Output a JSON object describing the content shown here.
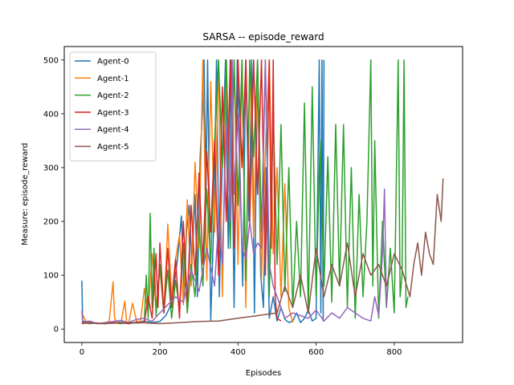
{
  "chart_data": {
    "type": "line",
    "title": "SARSA -- episode_reward",
    "xlabel": "Episodes",
    "ylabel": "Measure: episode_reward",
    "xlim": [
      -45,
      975
    ],
    "ylim": [
      -25,
      525
    ],
    "xticks": [
      0,
      200,
      400,
      600,
      800
    ],
    "yticks": [
      0,
      100,
      200,
      300,
      400,
      500
    ],
    "x_tick_labels": [
      "0",
      "200",
      "400",
      "600",
      "800"
    ],
    "y_tick_labels": [
      "0",
      "100",
      "200",
      "300",
      "400",
      "500"
    ],
    "grid": false,
    "legend_position": "top-left",
    "series": [
      {
        "name": "Agent-0",
        "color": "#1f77b4",
        "x": [
          0,
          2,
          20,
          40,
          60,
          80,
          100,
          120,
          140,
          160,
          180,
          200,
          215,
          225,
          235,
          245,
          255,
          262,
          268,
          275,
          282,
          290,
          296,
          303,
          310,
          313,
          318,
          322,
          330,
          338,
          345,
          352,
          360,
          368,
          375,
          382,
          390,
          398,
          405,
          412,
          420,
          428,
          435,
          442,
          450,
          458,
          465,
          472,
          480,
          490,
          500,
          510,
          520,
          530,
          540,
          550,
          560,
          570,
          580,
          590,
          600,
          608,
          612,
          615,
          618,
          620
        ],
        "y": [
          90,
          15,
          12,
          10,
          12,
          11,
          13,
          10,
          12,
          15,
          12,
          14,
          25,
          40,
          75,
          130,
          210,
          60,
          180,
          230,
          120,
          250,
          60,
          320,
          420,
          500,
          260,
          500,
          15,
          200,
          500,
          60,
          320,
          500,
          150,
          500,
          40,
          500,
          300,
          80,
          500,
          200,
          500,
          30,
          500,
          100,
          40,
          300,
          20,
          60,
          15,
          40,
          18,
          12,
          15,
          30,
          12,
          20,
          35,
          15,
          20,
          500,
          30,
          500,
          15,
          500
        ]
      },
      {
        "name": "Agent-1",
        "color": "#ff7f0e",
        "x": [
          0,
          10,
          30,
          50,
          70,
          80,
          84,
          90,
          100,
          110,
          115,
          120,
          130,
          140,
          150,
          160,
          170,
          180,
          190,
          200,
          210,
          220,
          230,
          240,
          250,
          260,
          270,
          280,
          290,
          300,
          310,
          320,
          330,
          340,
          350,
          360,
          370,
          380,
          390,
          400,
          410,
          420,
          430,
          440,
          450,
          460,
          470,
          480,
          490,
          500,
          510,
          520,
          530,
          540
        ],
        "y": [
          30,
          15,
          12,
          10,
          14,
          88,
          20,
          12,
          10,
          52,
          12,
          10,
          48,
          15,
          12,
          75,
          30,
          140,
          40,
          110,
          30,
          195,
          60,
          130,
          175,
          45,
          240,
          80,
          310,
          150,
          500,
          90,
          460,
          180,
          500,
          60,
          500,
          220,
          500,
          120,
          500,
          40,
          500,
          170,
          500,
          90,
          330,
          500,
          140,
          300,
          60,
          270,
          40,
          12
        ]
      },
      {
        "name": "Agent-2",
        "color": "#2ca02c",
        "x": [
          0,
          20,
          40,
          60,
          80,
          100,
          120,
          140,
          160,
          165,
          170,
          175,
          180,
          185,
          190,
          200,
          210,
          220,
          230,
          240,
          250,
          260,
          270,
          280,
          290,
          300,
          310,
          320,
          330,
          340,
          350,
          360,
          370,
          380,
          390,
          400,
          410,
          420,
          430,
          440,
          450,
          460,
          470,
          480,
          490,
          500,
          510,
          520,
          530,
          540,
          550,
          560,
          570,
          580,
          590,
          600,
          610,
          620,
          630,
          640,
          650,
          660,
          670,
          680,
          690,
          700,
          710,
          720,
          730,
          740,
          745,
          750,
          760,
          770,
          780,
          790,
          800,
          810,
          815,
          820,
          825,
          830,
          835
        ],
        "y": [
          12,
          10,
          11,
          10,
          12,
          10,
          13,
          11,
          12,
          100,
          20,
          215,
          40,
          150,
          25,
          120,
          30,
          110,
          20,
          90,
          40,
          160,
          30,
          120,
          60,
          200,
          80,
          260,
          120,
          350,
          500,
          300,
          500,
          150,
          500,
          230,
          500,
          90,
          500,
          320,
          500,
          180,
          500,
          60,
          400,
          120,
          380,
          70,
          300,
          40,
          200,
          60,
          420,
          30,
          450,
          60,
          350,
          80,
          320,
          50,
          380,
          80,
          380,
          40,
          300,
          20,
          250,
          60,
          200,
          500,
          80,
          350,
          20,
          200,
          40,
          150,
          30,
          500,
          60,
          100,
          500,
          40,
          60
        ]
      },
      {
        "name": "Agent-3",
        "color": "#d62728",
        "x": [
          0,
          20,
          40,
          60,
          80,
          100,
          120,
          140,
          160,
          170,
          180,
          190,
          195,
          200,
          210,
          220,
          230,
          240,
          250,
          260,
          270,
          280,
          290,
          300,
          310,
          320,
          330,
          340,
          350,
          360,
          370,
          380,
          390,
          400,
          410,
          420,
          430,
          440,
          450,
          460,
          470,
          480,
          485,
          490,
          495,
          500,
          510
        ],
        "y": [
          10,
          12,
          11,
          10,
          12,
          11,
          10,
          13,
          12,
          60,
          20,
          140,
          40,
          160,
          30,
          150,
          40,
          130,
          20,
          200,
          50,
          230,
          100,
          290,
          120,
          330,
          180,
          350,
          100,
          450,
          200,
          500,
          150,
          500,
          300,
          500,
          200,
          500,
          250,
          500,
          100,
          500,
          150,
          500,
          60,
          20,
          15
        ]
      },
      {
        "name": "Agent-4",
        "color": "#9467bd",
        "x": [
          0,
          2,
          20,
          40,
          60,
          80,
          100,
          120,
          140,
          160,
          180,
          200,
          220,
          240,
          260,
          280,
          300,
          320,
          340,
          350,
          360,
          370,
          380,
          385,
          390,
          400,
          410,
          420,
          430,
          440,
          450,
          460,
          470,
          480,
          490,
          500,
          510,
          520,
          540,
          560,
          580,
          600,
          620,
          640,
          660,
          680,
          700,
          720,
          740,
          750,
          760,
          770,
          775,
          780
        ],
        "y": [
          35,
          12,
          15,
          10,
          12,
          14,
          16,
          12,
          18,
          20,
          14,
          30,
          45,
          60,
          50,
          110,
          70,
          150,
          80,
          200,
          120,
          380,
          200,
          500,
          250,
          400,
          150,
          130,
          200,
          140,
          160,
          150,
          500,
          120,
          80,
          60,
          40,
          20,
          30,
          25,
          20,
          35,
          15,
          30,
          20,
          40,
          30,
          20,
          15,
          60,
          25,
          140,
          260,
          40
        ]
      },
      {
        "name": "Agent-5",
        "color": "#8c564b",
        "x": [
          0,
          50,
          100,
          150,
          200,
          250,
          300,
          350,
          400,
          450,
          500,
          520,
          540,
          560,
          580,
          600,
          620,
          640,
          660,
          680,
          700,
          720,
          740,
          760,
          780,
          800,
          820,
          840,
          850,
          860,
          870,
          880,
          890,
          900,
          910,
          920,
          925
        ],
        "y": [
          12,
          10,
          11,
          12,
          10,
          12,
          14,
          15,
          20,
          25,
          30,
          80,
          40,
          100,
          30,
          150,
          60,
          120,
          80,
          160,
          60,
          140,
          100,
          120,
          80,
          140,
          110,
          60,
          120,
          160,
          100,
          180,
          140,
          120,
          250,
          200,
          280
        ]
      }
    ]
  }
}
